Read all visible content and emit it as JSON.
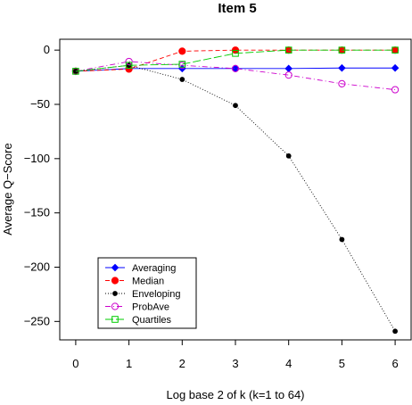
{
  "chart_data": {
    "type": "line",
    "title": "Item 5",
    "xlabel": "Log base 2 of k (k=1 to 64)",
    "ylabel": "Average Q−Score",
    "x": [
      0,
      1,
      2,
      3,
      4,
      5,
      6
    ],
    "xticks": [
      "0",
      "1",
      "2",
      "3",
      "4",
      "5",
      "6"
    ],
    "yticks": [
      0,
      -50,
      -100,
      -150,
      -200,
      -250
    ],
    "ytick_labels": [
      "0",
      "−50",
      "−100",
      "−150",
      "−200",
      "−250"
    ],
    "xlim": [
      -0.3,
      6.3
    ],
    "ylim": [
      -267,
      10
    ],
    "legend_position": "bottom-left",
    "series": [
      {
        "name": "Averaging",
        "color": "#0000ff",
        "dash": "solid",
        "marker": "filled-diamond",
        "values": [
          -19.5,
          -17.0,
          -17.0,
          -17.0,
          -17.0,
          -16.5,
          -16.5
        ]
      },
      {
        "name": "Median",
        "color": "#ff0000",
        "dash": "dashed",
        "marker": "filled-circle",
        "values": [
          -19.5,
          -17.5,
          -1.0,
          0.0,
          0.0,
          0.0,
          0.0
        ]
      },
      {
        "name": "Enveloping",
        "color": "#000000",
        "dash": "dotted",
        "marker": "small-filled-circle",
        "values": [
          -19.5,
          -14.0,
          -27.0,
          -51.0,
          -97.5,
          -174.5,
          -259.0
        ]
      },
      {
        "name": "ProbAve",
        "color": "#cc00cc",
        "dash": "dashdot",
        "marker": "open-circle",
        "values": [
          -19.5,
          -10.5,
          -14.0,
          -17.0,
          -23.0,
          -31.0,
          -36.5
        ]
      },
      {
        "name": "Quartiles",
        "color": "#00cc00",
        "dash": "longdash",
        "marker": "open-square",
        "values": [
          -19.5,
          -14.0,
          -13.0,
          -3.0,
          0.0,
          0.0,
          0.0
        ]
      }
    ]
  }
}
